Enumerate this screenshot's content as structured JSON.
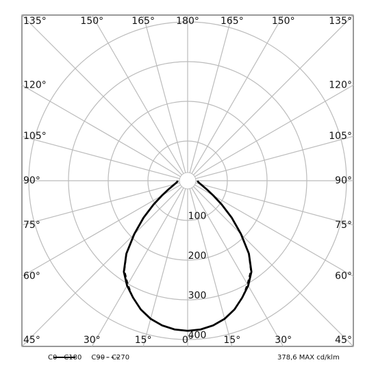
{
  "chart_data": {
    "type": "polar",
    "angles": [
      0,
      5,
      10,
      15,
      20,
      25,
      30,
      35,
      40,
      45,
      50,
      55,
      60,
      65,
      70,
      75,
      80,
      85,
      90
    ],
    "series": [
      {
        "name": "C0 - C180",
        "color": "#000000",
        "dash": false,
        "values": [
          378,
          376,
          370,
          360,
          345,
          325,
          305,
          280,
          240,
          190,
          145,
          105,
          75,
          55,
          42,
          34,
          29,
          26,
          25
        ]
      },
      {
        "name": "C90 - C270",
        "color": "#000000",
        "dash": true,
        "values": [
          378,
          376,
          370,
          360,
          345,
          325,
          300,
          276,
          238,
          188,
          143,
          104,
          75,
          55,
          42,
          34,
          29,
          26,
          25
        ]
      }
    ],
    "rlim": [
      0,
      400
    ],
    "rticks": [
      100,
      200,
      300,
      400
    ],
    "angle_ticks": [
      {
        "value": 0,
        "label": "0°"
      },
      {
        "value": 15,
        "label": "15°"
      },
      {
        "value": 30,
        "label": "30°"
      },
      {
        "value": 45,
        "label": "45°"
      },
      {
        "value": 60,
        "label": "60°"
      },
      {
        "value": 75,
        "label": "75°"
      },
      {
        "value": 90,
        "label": "90°"
      },
      {
        "value": 105,
        "label": "105°"
      },
      {
        "value": 120,
        "label": "120°"
      },
      {
        "value": 135,
        "label": "135°"
      },
      {
        "value": 150,
        "label": "150°"
      },
      {
        "value": 165,
        "label": "165°"
      },
      {
        "value": 180,
        "label": "180°"
      }
    ],
    "max_label": "378,6 MAX cd/klm",
    "grid": true
  }
}
